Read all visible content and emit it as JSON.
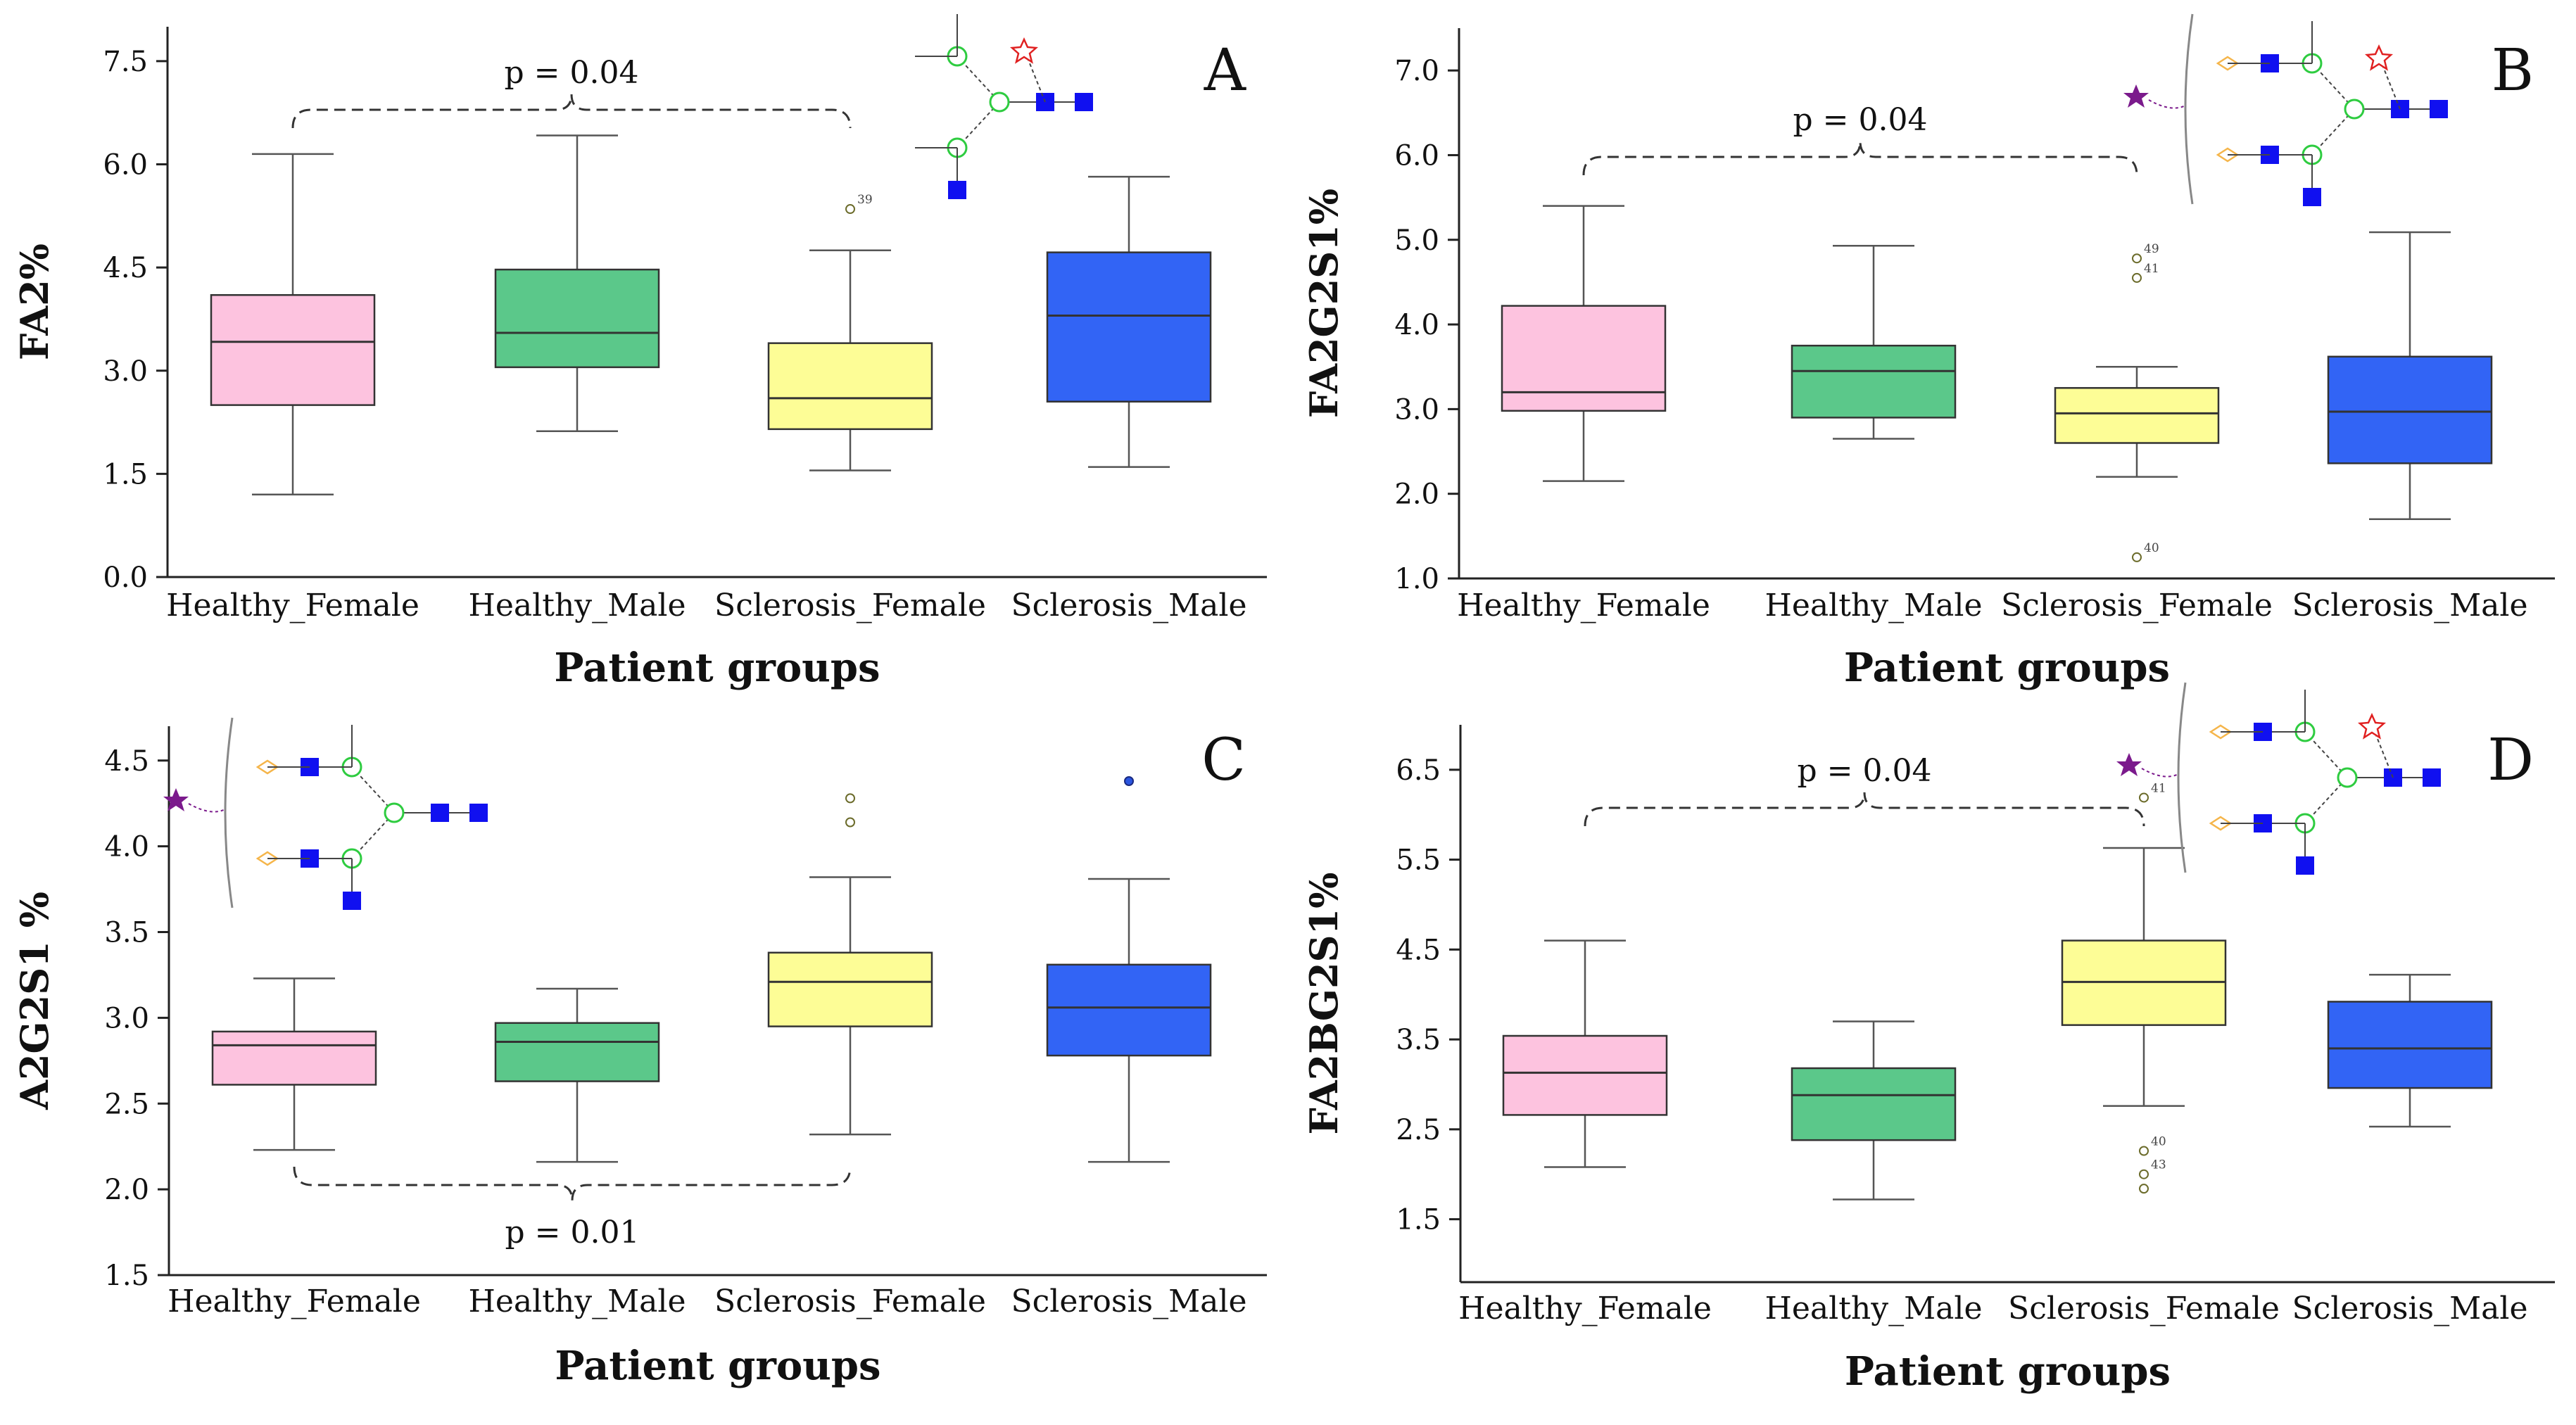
{
  "chart_data": [
    {
      "type": "box",
      "panel": "A",
      "ylabel": "FA2%",
      "xlabel": "Patient groups",
      "categories": [
        "Healthy_Female",
        "Healthy_Male",
        "Sclerosis_Female",
        "Sclerosis_Male"
      ],
      "colors": [
        "#fdc3df",
        "#5bc88a",
        "#fdfd96",
        "#3264f5"
      ],
      "ylim": [
        0,
        8
      ],
      "yticks": [
        "0.0",
        "1.5",
        "3.0",
        "4.5",
        "6.0",
        "7.5"
      ],
      "yticks_values": [
        0,
        1.5,
        3.0,
        4.5,
        6.0,
        7.5
      ],
      "boxes": [
        {
          "min": 1.2,
          "q1": 2.5,
          "median": 3.42,
          "q3": 4.1,
          "max": 6.15,
          "outliers": []
        },
        {
          "min": 2.12,
          "q1": 3.05,
          "median": 3.55,
          "q3": 4.47,
          "max": 6.42,
          "outliers": []
        },
        {
          "min": 1.55,
          "q1": 2.15,
          "median": 2.6,
          "q3": 3.4,
          "max": 4.75,
          "outliers": [
            {
              "value": 5.35,
              "label": "39"
            }
          ]
        },
        {
          "min": 1.6,
          "q1": 2.55,
          "median": 3.8,
          "q3": 4.72,
          "max": 5.82,
          "outliers": []
        }
      ],
      "bracket": {
        "from": 0,
        "to": 2,
        "position": "above",
        "label": "p = 0.04"
      }
    },
    {
      "type": "box",
      "panel": "B",
      "ylabel": "FA2G2S1%",
      "xlabel": "Patient groups",
      "categories": [
        "Healthy_Female",
        "Healthy_Male",
        "Sclerosis_Female",
        "Sclerosis_Male"
      ],
      "colors": [
        "#fdc3df",
        "#5bc88a",
        "#fdfd96",
        "#3264f5"
      ],
      "ylim": [
        1.0,
        7.5
      ],
      "yticks": [
        "1.0",
        "2.0",
        "3.0",
        "4.0",
        "5.0",
        "6.0",
        "7.0"
      ],
      "yticks_values": [
        1,
        2,
        3,
        4,
        5,
        6,
        7
      ],
      "boxes": [
        {
          "min": 2.15,
          "q1": 2.98,
          "median": 3.2,
          "q3": 4.22,
          "max": 5.4,
          "outliers": []
        },
        {
          "min": 2.65,
          "q1": 2.9,
          "median": 3.45,
          "q3": 3.75,
          "max": 4.93,
          "outliers": []
        },
        {
          "min": 2.2,
          "q1": 2.6,
          "median": 2.95,
          "q3": 3.25,
          "max": 3.5,
          "outliers": [
            {
              "value": 4.78,
              "label": "49"
            },
            {
              "value": 4.55,
              "label": "41"
            },
            {
              "value": 1.25,
              "label": "40"
            }
          ]
        },
        {
          "min": 1.7,
          "q1": 2.36,
          "median": 2.97,
          "q3": 3.62,
          "max": 5.09,
          "outliers": []
        }
      ],
      "bracket": {
        "from": 0,
        "to": 2,
        "position": "above",
        "label": "p = 0.04"
      }
    },
    {
      "type": "box",
      "panel": "C",
      "ylabel": "A2G2S1 %",
      "xlabel": "Patient groups",
      "categories": [
        "Healthy_Female",
        "Healthy_Male",
        "Sclerosis_Female",
        "Sclerosis_Male"
      ],
      "colors": [
        "#fdc3df",
        "#5bc88a",
        "#fdfd96",
        "#3264f5"
      ],
      "ylim": [
        1.5,
        4.7
      ],
      "yticks": [
        "1.5",
        "2.0",
        "2.5",
        "3.0",
        "3.5",
        "4.0",
        "4.5"
      ],
      "yticks_values": [
        1.5,
        2.0,
        2.5,
        3.0,
        3.5,
        4.0,
        4.5
      ],
      "boxes": [
        {
          "min": 2.23,
          "q1": 2.61,
          "median": 2.84,
          "q3": 2.92,
          "max": 3.23,
          "outliers": []
        },
        {
          "min": 2.16,
          "q1": 2.63,
          "median": 2.86,
          "q3": 2.97,
          "max": 3.17,
          "outliers": []
        },
        {
          "min": 2.32,
          "q1": 2.95,
          "median": 3.21,
          "q3": 3.38,
          "max": 3.82,
          "outliers": [
            {
              "value": 4.28,
              "label": ""
            },
            {
              "value": 4.14,
              "label": ""
            }
          ]
        },
        {
          "min": 2.16,
          "q1": 2.78,
          "median": 3.06,
          "q3": 3.31,
          "max": 3.81,
          "outliers": [
            {
              "value": 4.38,
              "label": ""
            }
          ]
        }
      ],
      "bracket": {
        "from": 0,
        "to": 2,
        "position": "below",
        "label": "p = 0.01"
      }
    },
    {
      "type": "box",
      "panel": "D",
      "ylabel": "FA2BG2S1%",
      "xlabel": "Patient groups",
      "categories": [
        "Healthy_Female",
        "Healthy_Male",
        "Sclerosis_Female",
        "Sclerosis_Male"
      ],
      "colors": [
        "#fdc3df",
        "#5bc88a",
        "#fdfd96",
        "#3264f5"
      ],
      "ylim": [
        0.8,
        7.0
      ],
      "yticks": [
        "1.5",
        "2.5",
        "3.5",
        "4.5",
        "5.5",
        "6.5"
      ],
      "yticks_values": [
        1.5,
        2.5,
        3.5,
        4.5,
        5.5,
        6.5
      ],
      "boxes": [
        {
          "min": 2.08,
          "q1": 2.66,
          "median": 3.13,
          "q3": 3.54,
          "max": 4.6,
          "outliers": []
        },
        {
          "min": 1.72,
          "q1": 2.38,
          "median": 2.88,
          "q3": 3.18,
          "max": 3.7,
          "outliers": []
        },
        {
          "min": 2.76,
          "q1": 3.66,
          "median": 4.14,
          "q3": 4.6,
          "max": 5.63,
          "outliers": [
            {
              "value": 6.19,
              "label": "41"
            },
            {
              "value": 2.0,
              "label": "43"
            },
            {
              "value": 1.84,
              "label": ""
            },
            {
              "value": 2.26,
              "label": "40"
            }
          ]
        },
        {
          "min": 2.53,
          "q1": 2.96,
          "median": 3.4,
          "q3": 3.92,
          "max": 4.22,
          "outliers": []
        }
      ],
      "bracket": {
        "from": 0,
        "to": 2,
        "position": "above",
        "label": "p = 0.04"
      }
    }
  ]
}
